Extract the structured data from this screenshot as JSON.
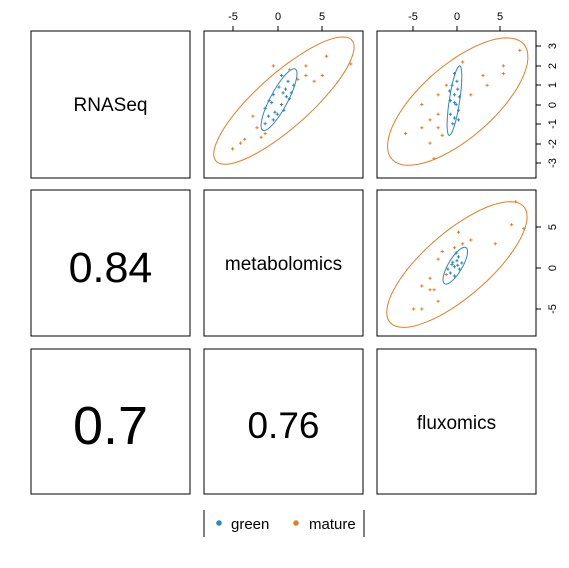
{
  "chart_data": {
    "type": "scatter",
    "variables": [
      "RNASeq",
      "metabolomics",
      "fluxomics"
    ],
    "correlations": [
      {
        "row": "metabolomics",
        "col": "RNASeq",
        "value": "0.84"
      },
      {
        "row": "fluxomics",
        "col": "RNASeq",
        "value": "0.7"
      },
      {
        "row": "fluxomics",
        "col": "metabolomics",
        "value": "0.76"
      }
    ],
    "axes": {
      "top_ticks": [
        "-5",
        "0",
        "5"
      ],
      "right_ticks_row1": [
        "3",
        "2",
        "1",
        "0",
        "-1",
        "-2",
        "-3"
      ],
      "right_ticks_row2": [
        "5",
        "0",
        "-5"
      ]
    },
    "legend": [
      {
        "label": "green",
        "color": "#2E86C1"
      },
      {
        "label": "mature",
        "color": "#E67E22"
      }
    ],
    "panels": [
      {
        "row": "RNASeq",
        "col": "metabolomics",
        "xlim": [
          -9,
          9.5
        ],
        "ylim": [
          -3.6,
          3.6
        ],
        "series": [
          {
            "name": "green",
            "points": [
              [
                -2,
                -0.2
              ],
              [
                -1.5,
                0.2
              ],
              [
                -1,
                0.5
              ],
              [
                -0.5,
                -0.5
              ],
              [
                0,
                0
              ],
              [
                0.5,
                0.8
              ],
              [
                1,
                0.3
              ],
              [
                -1,
                -0.8
              ],
              [
                0.8,
                1.2
              ],
              [
                -2,
                -1
              ],
              [
                0,
                1.5
              ],
              [
                1.2,
                0.6
              ],
              [
                -0.3,
                0.9
              ],
              [
                0.3,
                -0.3
              ],
              [
                -1.2,
                0.1
              ],
              [
                0.6,
                0.4
              ],
              [
                1.5,
                1
              ],
              [
                -0.8,
                -0.4
              ],
              [
                0.2,
                0.6
              ],
              [
                -1.6,
                -0.6
              ]
            ]
          },
          {
            "name": "mature",
            "points": [
              [
                -6,
                -2.3
              ],
              [
                -4.5,
                -1.8
              ],
              [
                -3,
                -1.2
              ],
              [
                -2.5,
                -1.7
              ],
              [
                -3.5,
                -0.6
              ],
              [
                -2,
                -1.5
              ],
              [
                1,
                1.8
              ],
              [
                2,
                1.3
              ],
              [
                3,
                1.5
              ],
              [
                4,
                1.2
              ],
              [
                5,
                1.5
              ],
              [
                5.5,
                2.5
              ],
              [
                8.5,
                2.1
              ],
              [
                -1,
                2
              ],
              [
                3,
                2
              ],
              [
                -5,
                -2
              ]
            ]
          }
        ],
        "ellipses": [
          {
            "name": "green",
            "center": [
              -0.3,
              0.25
            ],
            "sd": [
              1.1,
              0.8
            ],
            "r": 0.84
          },
          {
            "name": "mature",
            "center": [
              0.3,
              0.2
            ],
            "sd": [
              4.3,
              1.65
            ],
            "r": 0.84
          }
        ]
      },
      {
        "row": "RNASeq",
        "col": "fluxomics",
        "xlim": [
          -9,
          9.5
        ],
        "ylim": [
          -3.6,
          3.6
        ],
        "series": [
          {
            "name": "green",
            "points": [
              [
                -0.5,
                0.2
              ],
              [
                0,
                0.5
              ],
              [
                0.5,
                -0.3
              ],
              [
                0,
                -0.7
              ],
              [
                -0.3,
                1
              ],
              [
                0.4,
                0.8
              ],
              [
                0,
                1.6
              ],
              [
                -0.5,
                -0.5
              ],
              [
                0.2,
                0
              ],
              [
                0.6,
                0.4
              ],
              [
                -0.2,
                -1
              ],
              [
                0.3,
                1.2
              ],
              [
                -0.6,
                0.7
              ],
              [
                0.5,
                -0.8
              ],
              [
                0,
                0.1
              ]
            ]
          },
          {
            "name": "mature",
            "points": [
              [
                -6,
                -1.5
              ],
              [
                -4,
                -1.2
              ],
              [
                -3,
                -2
              ],
              [
                -2,
                -0.5
              ],
              [
                -2,
                0.5
              ],
              [
                -1,
                1
              ],
              [
                2,
                0.5
              ],
              [
                3.5,
                1.5
              ],
              [
                4,
                1
              ],
              [
                6,
                2
              ],
              [
                6,
                1.6
              ],
              [
                8,
                2.8
              ],
              [
                -1.5,
                -1.6
              ],
              [
                1,
                2.2
              ],
              [
                -4,
                0
              ],
              [
                -2.5,
                -2.8
              ],
              [
                -3,
                -0.8
              ],
              [
                -2,
                -1.2
              ]
            ]
          }
        ],
        "ellipses": [
          {
            "name": "green",
            "center": [
              0,
              0.2
            ],
            "sd": [
              0.45,
              0.9
            ],
            "r": 0.7
          },
          {
            "name": "mature",
            "center": [
              0.4,
              0.15
            ],
            "sd": [
              4.3,
              1.65
            ],
            "r": 0.7
          }
        ]
      },
      {
        "row": "metabolomics",
        "col": "fluxomics",
        "xlim": [
          -9,
          9.5
        ],
        "ylim": [
          -8.5,
          9.5
        ],
        "series": [
          {
            "name": "green",
            "points": [
              [
                0,
                0
              ],
              [
                -0.5,
                -0.8
              ],
              [
                0.3,
                0.8
              ],
              [
                0.5,
                1.3
              ],
              [
                -0.3,
                0.3
              ],
              [
                0.6,
                -0.3
              ],
              [
                0.2,
                1.8
              ],
              [
                -0.8,
                -0.3
              ],
              [
                0.9,
                0.5
              ],
              [
                0,
                -1.2
              ],
              [
                -0.2,
                0.6
              ],
              [
                0.4,
                0.2
              ]
            ]
          },
          {
            "name": "mature",
            "points": [
              [
                -5,
                -5.5
              ],
              [
                -4,
                -2.5
              ],
              [
                -3,
                -3
              ],
              [
                -2,
                -4.5
              ],
              [
                -2,
                1
              ],
              [
                -1,
                -1
              ],
              [
                0,
                2.5
              ],
              [
                1,
                3
              ],
              [
                2,
                3.5
              ],
              [
                5,
                3
              ],
              [
                7,
                5.5
              ],
              [
                7.5,
                8.5
              ],
              [
                8.5,
                5
              ],
              [
                -4,
                -5.5
              ],
              [
                -3,
                -1.5
              ],
              [
                -1.5,
                2
              ],
              [
                0.5,
                4.5
              ],
              [
                -2.5,
                -3
              ]
            ]
          }
        ],
        "ellipses": [
          {
            "name": "green",
            "center": [
              0.1,
              0.15
            ],
            "sd": [
              0.75,
              1.2
            ],
            "r": 0.76
          },
          {
            "name": "mature",
            "center": [
              0.3,
              0.3
            ],
            "sd": [
              4.3,
              4.1
            ],
            "r": 0.76
          }
        ]
      }
    ]
  }
}
